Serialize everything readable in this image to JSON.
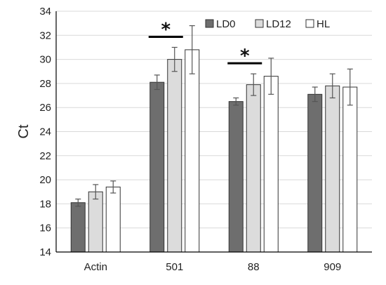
{
  "chart_data": {
    "type": "bar",
    "title": "",
    "xlabel": "",
    "ylabel": "Ct",
    "ylim": [
      14,
      34
    ],
    "yticks": [
      14,
      16,
      18,
      20,
      22,
      24,
      26,
      28,
      30,
      32,
      34
    ],
    "grid": true,
    "legend_position": "top-right",
    "categories": [
      "Actin",
      "501",
      "88",
      "909"
    ],
    "series": [
      {
        "name": "LD0",
        "color": "#6e6e6e",
        "values": [
          18.1,
          28.1,
          26.5,
          27.1
        ],
        "errors": [
          0.3,
          0.6,
          0.3,
          0.6
        ]
      },
      {
        "name": "LD12",
        "color": "#dcdcdc",
        "values": [
          19.0,
          30.0,
          27.9,
          27.8
        ],
        "errors": [
          0.6,
          1.0,
          0.9,
          1.0
        ]
      },
      {
        "name": "HL",
        "color": "#ffffff",
        "values": [
          19.4,
          30.8,
          28.6,
          27.7
        ],
        "errors": [
          0.5,
          2.0,
          1.5,
          1.5
        ]
      }
    ],
    "annotations": [
      {
        "text": "*",
        "category": "501"
      },
      {
        "text": "*",
        "category": "88"
      }
    ]
  }
}
